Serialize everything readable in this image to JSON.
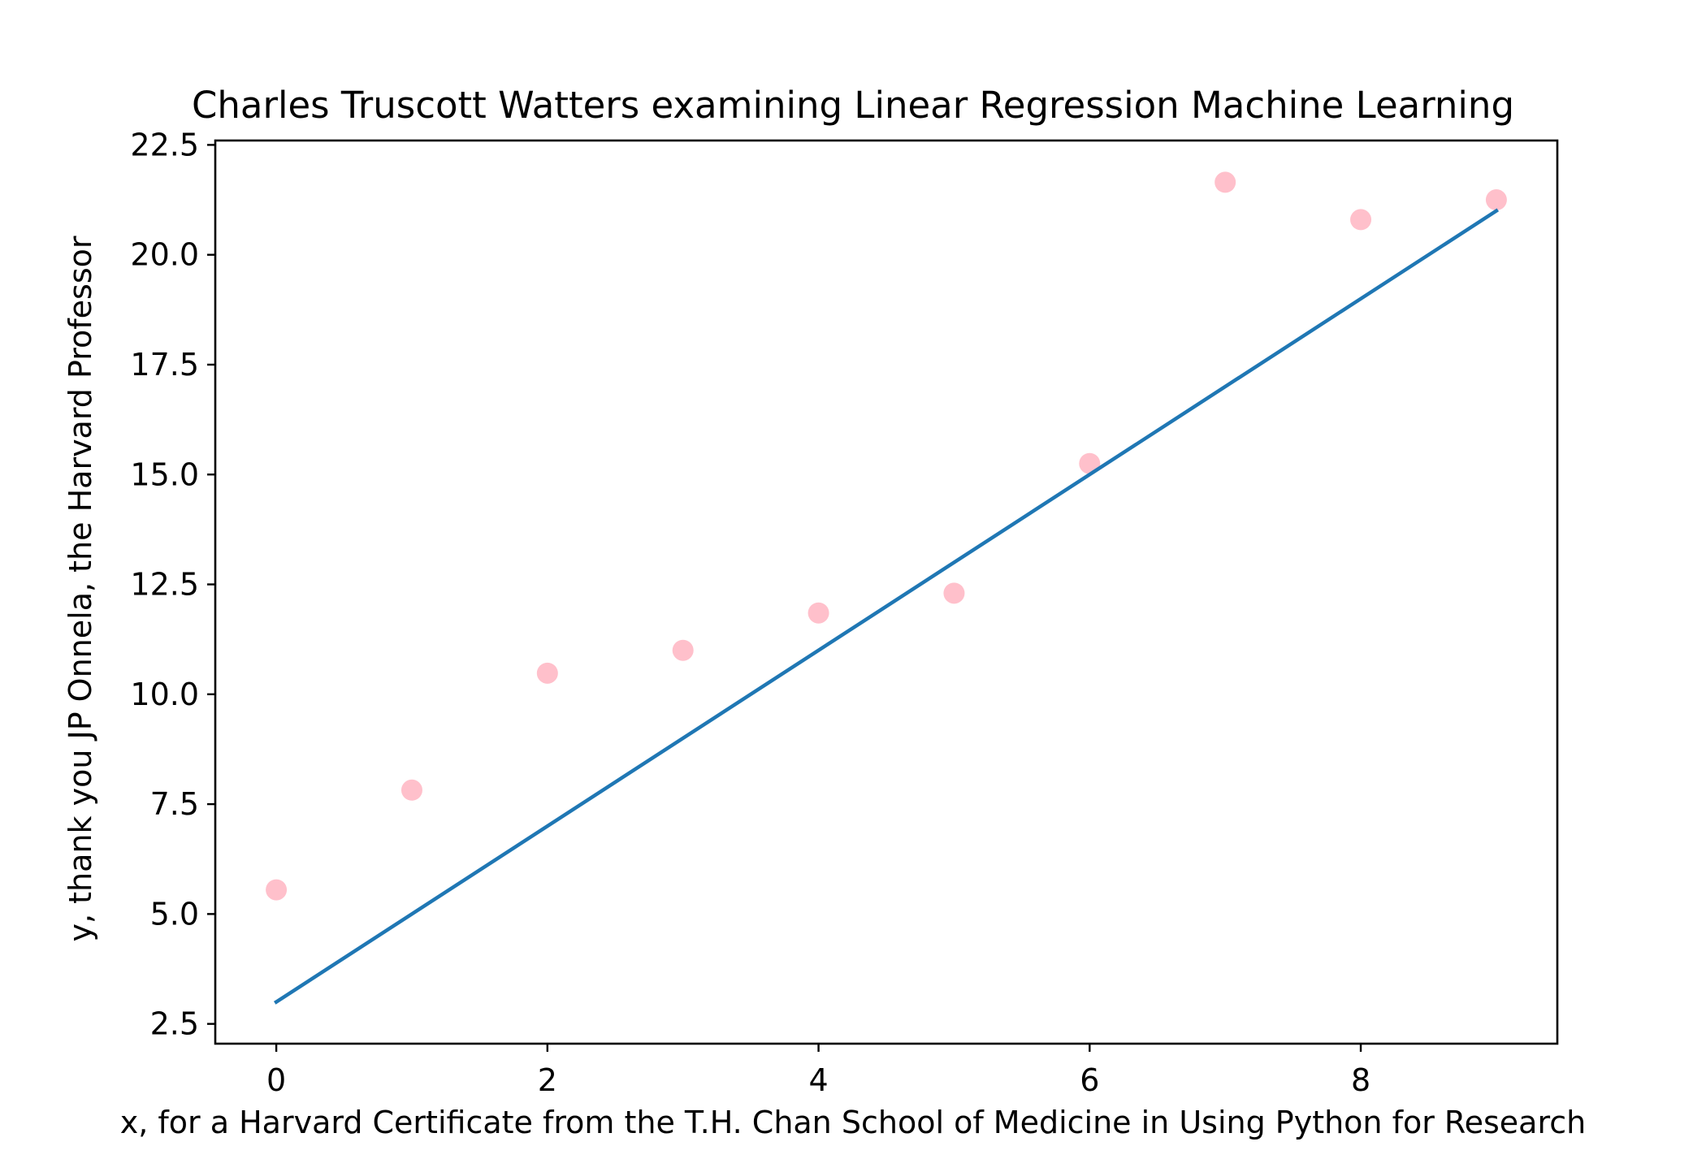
{
  "chart_data": {
    "type": "scatter",
    "title": "Charles Truscott Watters examining Linear Regression Machine Learning",
    "xlabel": "x, for a Harvard Certificate from the T.H. Chan School of Medicine in Using Python for Research",
    "ylabel": "y, thank you JP Onnela, the Harvard Professor",
    "xlim": [
      -0.45,
      9.45
    ],
    "ylim": [
      2.05,
      22.6
    ],
    "x_ticks": [
      0,
      2,
      4,
      6,
      8
    ],
    "x_tick_labels": [
      "0",
      "2",
      "4",
      "6",
      "8"
    ],
    "y_ticks": [
      2.5,
      5.0,
      7.5,
      10.0,
      12.5,
      15.0,
      17.5,
      20.0,
      22.5
    ],
    "y_tick_labels": [
      "2.5",
      "5.0",
      "7.5",
      "10.0",
      "12.5",
      "15.0",
      "17.5",
      "20.0",
      "22.5"
    ],
    "grid": false,
    "series": [
      {
        "type": "scatter",
        "color": "#ffc0cb",
        "x": [
          0,
          1,
          2,
          3,
          4,
          5,
          6,
          7,
          8,
          9
        ],
        "y": [
          5.55,
          7.82,
          10.48,
          11.0,
          11.85,
          12.3,
          15.25,
          21.65,
          20.8,
          21.25
        ]
      },
      {
        "type": "line",
        "color": "#1f77b4",
        "x": [
          0,
          9
        ],
        "y": [
          3.0,
          21.0
        ]
      }
    ]
  }
}
